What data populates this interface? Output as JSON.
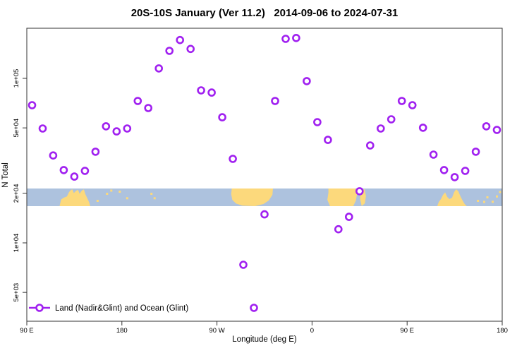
{
  "chart_data": {
    "type": "scatter",
    "title": "20S-10S January (Ver 11.2)   2014-09-06 to 2024-07-31",
    "xlabel": "Longitude (deg E)",
    "ylabel": "N Total",
    "x_axis": {
      "tick_labels": [
        "90 E",
        "180",
        "90 W",
        "0",
        "90 E",
        "180"
      ],
      "tick_offsets_deg": [
        0,
        90,
        180,
        270,
        360,
        450
      ],
      "range_offsets_deg": [
        0,
        450
      ]
    },
    "y_axis": {
      "scale": "log10",
      "tick_labels": [
        "5e+03",
        "1e+04",
        "2e+04",
        "5e+04",
        "1e+05"
      ],
      "tick_values": [
        5000,
        10000,
        20000,
        50000,
        100000
      ]
    },
    "legend": {
      "label": "Land (Nadir&Glint) and Ocean (Glint)"
    },
    "series": [
      {
        "name": "Land (Nadir&Glint) and Ocean (Glint)",
        "marker": "open-circle",
        "color": "#A020F0",
        "lon_offsets_deg": [
          5,
          15,
          25,
          35,
          45,
          55,
          65,
          75,
          85,
          95,
          105,
          115,
          125,
          135,
          145,
          155,
          165,
          175,
          185,
          195,
          205,
          215,
          225,
          235,
          245,
          255,
          265,
          275,
          285,
          295,
          305,
          315,
          325,
          335,
          345,
          355,
          365,
          375,
          385,
          395,
          405,
          415,
          425,
          435,
          445
        ],
        "values": [
          68700,
          49600,
          34000,
          27700,
          25300,
          27400,
          35800,
          51100,
          47600,
          49600,
          72900,
          66000,
          115000,
          147000,
          171000,
          151000,
          84500,
          82000,
          58000,
          32400,
          7360,
          4030,
          14900,
          72900,
          174000,
          176000,
          96200,
          54200,
          42300,
          12100,
          14400,
          20600,
          39100,
          49600,
          56400,
          72900,
          68700,
          50100,
          34400,
          27700,
          25100,
          27400,
          35800,
          51100,
          48600
        ]
      }
    ],
    "map_band": {
      "ocean_color": "#ADC2DE",
      "land_color": "#FCD97C",
      "band_center_value": 20000,
      "land_shapes": [
        {
          "name": "australia-first-pass",
          "points": [
            [
              31,
              1
            ],
            [
              32.5,
              0.62
            ],
            [
              35,
              0.52
            ],
            [
              38,
              0.45
            ],
            [
              40,
              0.2
            ],
            [
              41.5,
              0.1
            ],
            [
              43,
              0.04
            ],
            [
              44.5,
              0.26
            ],
            [
              46.5,
              0.14
            ],
            [
              48.5,
              0.07
            ],
            [
              50,
              0.3
            ],
            [
              52,
              0.12
            ],
            [
              54,
              0.05
            ],
            [
              55.5,
              0.33
            ],
            [
              57.5,
              0.58
            ],
            [
              59,
              0.78
            ],
            [
              60,
              1
            ]
          ]
        },
        {
          "name": "south-america",
          "points": [
            [
              194,
              0
            ],
            [
              233,
              0
            ],
            [
              232.5,
              0.36
            ],
            [
              229,
              0.68
            ],
            [
              224,
              0.88
            ],
            [
              216,
              1
            ],
            [
              204,
              0.97
            ],
            [
              198,
              0.85
            ],
            [
              194.5,
              0.64
            ],
            [
              193.5,
              0.32
            ]
          ]
        },
        {
          "name": "africa",
          "points": [
            [
              285.5,
              0
            ],
            [
              311,
              0
            ],
            [
              312.5,
              0.32
            ],
            [
              311.5,
              0.68
            ],
            [
              309,
              1
            ],
            [
              287,
              1
            ],
            [
              284.5,
              0.64
            ],
            [
              285.5,
              0.24
            ]
          ]
        },
        {
          "name": "madagascar",
          "points": [
            [
              315.8,
              0.12
            ],
            [
              319.8,
              0.04
            ],
            [
              321,
              0.44
            ],
            [
              320,
              0.84
            ],
            [
              317,
              1
            ],
            [
              315.5,
              0.6
            ]
          ]
        },
        {
          "name": "australia-second-pass",
          "points": [
            [
              388.5,
              1
            ],
            [
              390,
              0.76
            ],
            [
              392,
              0.6
            ],
            [
              394,
              0.36
            ],
            [
              396,
              0.22
            ],
            [
              398,
              0.48
            ],
            [
              400,
              0.6
            ],
            [
              402.5,
              0.52
            ],
            [
              404.5,
              0.2
            ],
            [
              406.5,
              0.04
            ],
            [
              408.5,
              0.16
            ],
            [
              410.5,
              0.44
            ],
            [
              412.5,
              0.68
            ],
            [
              414.5,
              0.88
            ],
            [
              416.5,
              1
            ]
          ]
        }
      ],
      "island_specks": [
        [
          67,
          0.7
        ],
        [
          76,
          0.3
        ],
        [
          80,
          0.12
        ],
        [
          88,
          0.18
        ],
        [
          95,
          0.55
        ],
        [
          118,
          0.3
        ],
        [
          121,
          0.55
        ],
        [
          427,
          0.7
        ],
        [
          433,
          0.76
        ],
        [
          436,
          0.5
        ],
        [
          441,
          0.75
        ],
        [
          445,
          0.45
        ],
        [
          448,
          0.2
        ]
      ]
    }
  }
}
